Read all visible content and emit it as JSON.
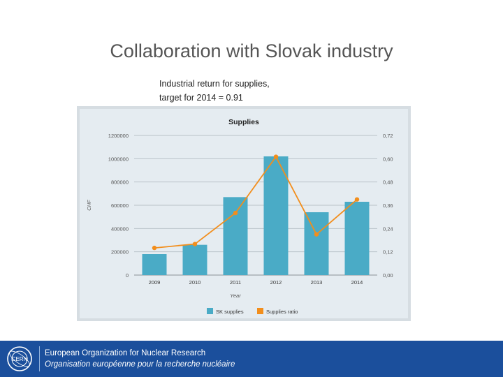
{
  "slide": {
    "title": "Collaboration with Slovak industry",
    "subtitle_line1": "Industrial return for supplies,",
    "subtitle_line2": "target for 2014 = 0.91"
  },
  "chart_data": {
    "type": "bar",
    "title": "Supplies",
    "xlabel": "Year",
    "ylabel": "CHF",
    "categories": [
      "2009",
      "2010",
      "2011",
      "2012",
      "2013",
      "2014"
    ],
    "y_ticks": [
      "0",
      "200000",
      "400000",
      "600000",
      "800000",
      "1000000",
      "1200000"
    ],
    "y2_ticks": [
      "0,00",
      "0,12",
      "0,24",
      "0,36",
      "0,48",
      "0,60",
      "0,72"
    ],
    "ylim": [
      0,
      1200000
    ],
    "y2lim": [
      0,
      0.72
    ],
    "grid": true,
    "legend_position": "bottom",
    "series": [
      {
        "name": "SK supplies",
        "type": "bar",
        "axis": "left",
        "color": "#4aabc6",
        "values": [
          180000,
          260000,
          670000,
          1020000,
          540000,
          630000
        ]
      },
      {
        "name": "Supplies ratio",
        "type": "line",
        "axis": "right",
        "color": "#f28e1c",
        "values": [
          0.14,
          0.16,
          0.32,
          0.61,
          0.21,
          0.39
        ]
      }
    ]
  },
  "footer": {
    "line_en": "European Organization for Nuclear Research",
    "line_fr": "Organisation européenne pour la recherche nucléaire",
    "logo_text": "CERN",
    "background": "#1b4f9c"
  }
}
